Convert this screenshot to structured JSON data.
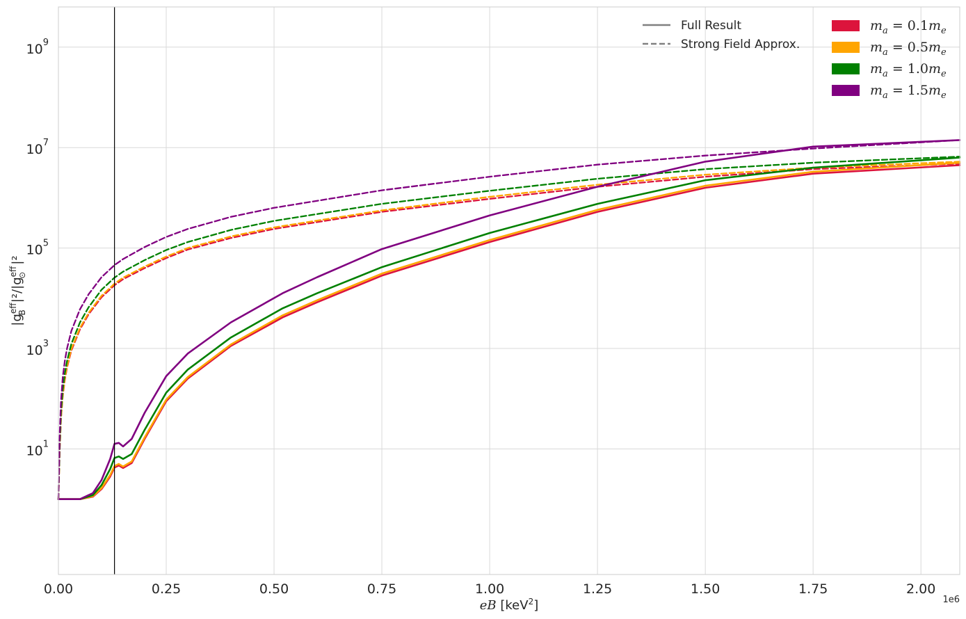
{
  "chart_data": {
    "type": "line",
    "xlabel_var": "eB",
    "xlabel_unit_open": "[keV",
    "xlabel_unit_exp": "2",
    "xlabel_unit_close": "]",
    "x_offset_label": "1e6",
    "ylabel": "|g_B^eff|^2 / |g_⊙^eff|^2",
    "ylabel_parts": {
      "pre1": "|g",
      "sup1": "eff",
      "sub1": "B",
      "mid": "|²/|g",
      "sup2": "eff",
      "sub2": "⊙",
      "post": "|²"
    },
    "xlim": [
      0,
      2.09
    ],
    "ylim_log10": [
      -1.5,
      9.8
    ],
    "yscale": "log",
    "grid": true,
    "vertical_line_x": 0.13,
    "x_ticks": [
      0.0,
      0.25,
      0.5,
      0.75,
      1.0,
      1.25,
      1.5,
      1.75,
      2.0
    ],
    "x_tick_labels": [
      "0.00",
      "0.25",
      "0.50",
      "0.75",
      "1.00",
      "1.25",
      "1.50",
      "1.75",
      "2.00"
    ],
    "y_ticks_log10": [
      1,
      3,
      5,
      7,
      9
    ],
    "y_tick_labels": [
      {
        "base": "10",
        "exp": "1"
      },
      {
        "base": "10",
        "exp": "3"
      },
      {
        "base": "10",
        "exp": "5"
      },
      {
        "base": "10",
        "exp": "7"
      },
      {
        "base": "10",
        "exp": "9"
      }
    ],
    "style_legend": {
      "placement": "top-right",
      "items": [
        {
          "label": "Full Result",
          "style": "solid",
          "color": "#808080"
        },
        {
          "label": "Strong Field Approx.",
          "style": "dashed",
          "color": "#808080"
        }
      ]
    },
    "color_legend": {
      "placement": "top-right",
      "items": [
        {
          "label": "m_a = 0.1m_e",
          "var": "m",
          "sub": "a",
          "value": " = 0.1",
          "var2": "m",
          "sub2": "e",
          "color": "#dc143c"
        },
        {
          "label": "m_a = 0.5m_e",
          "var": "m",
          "sub": "a",
          "value": " = 0.5",
          "var2": "m",
          "sub2": "e",
          "color": "#ffa500"
        },
        {
          "label": "m_a = 1.0m_e",
          "var": "m",
          "sub": "a",
          "value": " = 1.0",
          "var2": "m",
          "sub2": "e",
          "color": "#008000"
        },
        {
          "label": "m_a = 1.5m_e",
          "var": "m",
          "sub": "a",
          "value": " = 1.5",
          "var2": "m",
          "sub2": "e",
          "color": "#800080"
        }
      ]
    },
    "series": [
      {
        "name": "m_a = 0.1m_e",
        "kind": "full",
        "color": "#dc143c",
        "x": [
          0.0,
          0.05,
          0.08,
          0.1,
          0.12,
          0.13,
          0.14,
          0.15,
          0.17,
          0.2,
          0.25,
          0.3,
          0.4,
          0.52,
          0.6,
          0.75,
          1.0,
          1.25,
          1.5,
          1.75,
          2.09
        ],
        "log10_y": [
          0.0,
          0.0,
          0.05,
          0.2,
          0.45,
          0.63,
          0.67,
          0.62,
          0.72,
          1.2,
          1.95,
          2.4,
          3.05,
          3.62,
          3.92,
          4.45,
          5.12,
          5.72,
          6.2,
          6.48,
          6.65
        ]
      },
      {
        "name": "m_a = 0.5m_e",
        "kind": "full",
        "color": "#ffa500",
        "x": [
          0.0,
          0.05,
          0.08,
          0.1,
          0.12,
          0.13,
          0.14,
          0.15,
          0.17,
          0.2,
          0.25,
          0.3,
          0.4,
          0.52,
          0.6,
          0.75,
          1.0,
          1.25,
          1.5,
          1.75,
          2.09
        ],
        "log10_y": [
          0.0,
          0.0,
          0.06,
          0.22,
          0.48,
          0.66,
          0.7,
          0.65,
          0.75,
          1.23,
          1.98,
          2.43,
          3.08,
          3.66,
          3.96,
          4.49,
          5.16,
          5.76,
          6.24,
          6.52,
          6.7
        ]
      },
      {
        "name": "m_a = 1.0m_e",
        "kind": "full",
        "color": "#008000",
        "x": [
          0.0,
          0.05,
          0.08,
          0.1,
          0.12,
          0.13,
          0.14,
          0.15,
          0.17,
          0.2,
          0.25,
          0.3,
          0.4,
          0.52,
          0.6,
          0.75,
          1.0,
          1.25,
          1.5,
          1.75,
          2.09
        ],
        "log10_y": [
          0.0,
          0.0,
          0.08,
          0.28,
          0.6,
          0.82,
          0.85,
          0.8,
          0.9,
          1.38,
          2.12,
          2.58,
          3.22,
          3.8,
          4.1,
          4.62,
          5.3,
          5.88,
          6.35,
          6.6,
          6.8
        ]
      },
      {
        "name": "m_a = 1.5m_e",
        "kind": "full",
        "color": "#800080",
        "x": [
          0.0,
          0.05,
          0.08,
          0.1,
          0.12,
          0.13,
          0.14,
          0.15,
          0.17,
          0.2,
          0.25,
          0.3,
          0.4,
          0.52,
          0.6,
          0.75,
          1.0,
          1.25,
          1.5,
          1.75,
          2.09
        ],
        "log10_y": [
          0.0,
          0.0,
          0.12,
          0.38,
          0.8,
          1.1,
          1.12,
          1.05,
          1.2,
          1.72,
          2.45,
          2.9,
          3.52,
          4.1,
          4.42,
          4.98,
          5.65,
          6.22,
          6.72,
          7.02,
          7.15
        ]
      },
      {
        "name": "m_a = 0.1m_e",
        "kind": "approx",
        "color": "#dc143c",
        "x": [
          0.0,
          0.003,
          0.006,
          0.01,
          0.015,
          0.02,
          0.03,
          0.05,
          0.07,
          0.1,
          0.13,
          0.15,
          0.2,
          0.25,
          0.3,
          0.4,
          0.5,
          0.75,
          1.0,
          1.25,
          1.5,
          1.75,
          2.09
        ],
        "log10_y": [
          0.0,
          1.0,
          1.6,
          2.05,
          2.38,
          2.62,
          2.96,
          3.38,
          3.68,
          4.02,
          4.26,
          4.38,
          4.6,
          4.8,
          4.97,
          5.2,
          5.38,
          5.72,
          5.98,
          6.22,
          6.42,
          6.57,
          6.68
        ]
      },
      {
        "name": "m_a = 0.5m_e",
        "kind": "approx",
        "color": "#ffa500",
        "x": [
          0.0,
          0.003,
          0.006,
          0.01,
          0.015,
          0.02,
          0.03,
          0.05,
          0.07,
          0.1,
          0.13,
          0.15,
          0.2,
          0.25,
          0.3,
          0.4,
          0.5,
          0.75,
          1.0,
          1.25,
          1.5,
          1.75,
          2.09
        ],
        "log10_y": [
          0.0,
          1.02,
          1.62,
          2.08,
          2.41,
          2.65,
          2.99,
          3.41,
          3.71,
          4.05,
          4.29,
          4.41,
          4.63,
          4.83,
          5.0,
          5.23,
          5.41,
          5.75,
          6.02,
          6.26,
          6.46,
          6.6,
          6.72
        ]
      },
      {
        "name": "m_a = 1.0m_e",
        "kind": "approx",
        "color": "#008000",
        "x": [
          0.0,
          0.003,
          0.006,
          0.01,
          0.015,
          0.02,
          0.03,
          0.05,
          0.07,
          0.1,
          0.13,
          0.15,
          0.2,
          0.25,
          0.3,
          0.4,
          0.5,
          0.75,
          1.0,
          1.25,
          1.5,
          1.75,
          2.09
        ],
        "log10_y": [
          0.0,
          1.1,
          1.72,
          2.18,
          2.51,
          2.75,
          3.09,
          3.52,
          3.82,
          4.17,
          4.41,
          4.53,
          4.76,
          4.96,
          5.12,
          5.36,
          5.54,
          5.88,
          6.14,
          6.38,
          6.57,
          6.7,
          6.82
        ]
      },
      {
        "name": "m_a = 1.5m_e",
        "kind": "approx",
        "color": "#800080",
        "x": [
          0.0,
          0.003,
          0.006,
          0.01,
          0.015,
          0.02,
          0.03,
          0.05,
          0.07,
          0.1,
          0.13,
          0.15,
          0.2,
          0.25,
          0.3,
          0.4,
          0.5,
          0.75,
          1.0,
          1.25,
          1.5,
          1.75,
          2.09
        ],
        "log10_y": [
          0.0,
          1.3,
          1.95,
          2.42,
          2.76,
          3.0,
          3.35,
          3.78,
          4.08,
          4.42,
          4.66,
          4.78,
          5.02,
          5.22,
          5.38,
          5.62,
          5.8,
          6.15,
          6.42,
          6.66,
          6.84,
          6.98,
          7.15
        ]
      }
    ]
  }
}
